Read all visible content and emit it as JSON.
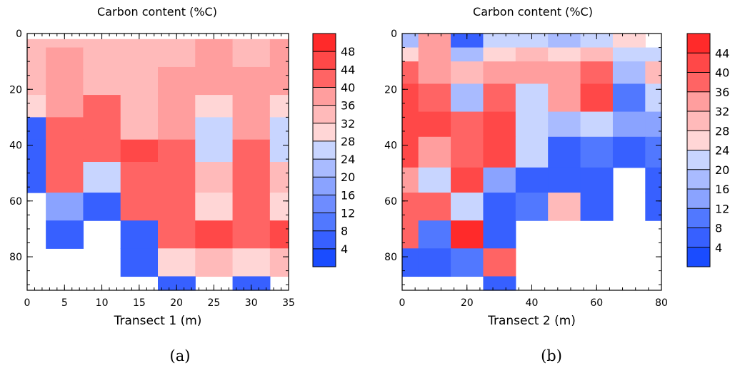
{
  "chart_data": [
    {
      "type": "heatmap",
      "title": "Carbon content (%C)",
      "xlabel": "Transect 1 (m)",
      "ylabel": "",
      "caption": "(a)",
      "xlim": [
        0,
        35
      ],
      "ylim": [
        0,
        92
      ],
      "y_axis": "inverted (0 at top)",
      "x_ticks": [
        "0",
        "5",
        "10",
        "15",
        "20",
        "25",
        "30",
        "35"
      ],
      "y_ticks": [
        "0",
        "20",
        "40",
        "60",
        "80"
      ],
      "x_edges": [
        0,
        2.5,
        7.5,
        12.5,
        17.5,
        22.5,
        27.5,
        32.5,
        35
      ],
      "y_edges": [
        2,
        5,
        12,
        22,
        30,
        38,
        46,
        57,
        67,
        77,
        87,
        92
      ],
      "values": [
        [
          32,
          32,
          32,
          32,
          34,
          38,
          34,
          38
        ],
        [
          32,
          38,
          34,
          34,
          34,
          38,
          34,
          38
        ],
        [
          32,
          38,
          34,
          34,
          38,
          38,
          38,
          38
        ],
        [
          28,
          38,
          42,
          34,
          38,
          28,
          38,
          28
        ],
        [
          6,
          42,
          42,
          34,
          38,
          24,
          38,
          24
        ],
        [
          6,
          42,
          42,
          46,
          42,
          24,
          42,
          24
        ],
        [
          6,
          42,
          24,
          42,
          42,
          34,
          42,
          34
        ],
        [
          null,
          18,
          6,
          42,
          42,
          28,
          42,
          28
        ],
        [
          null,
          6,
          null,
          6,
          42,
          46,
          42,
          46
        ],
        [
          null,
          null,
          null,
          6,
          28,
          34,
          28,
          34
        ],
        [
          null,
          null,
          null,
          null,
          6,
          null,
          6,
          null
        ]
      ],
      "colorbar": {
        "levels": [
          0,
          4,
          8,
          12,
          16,
          20,
          24,
          28,
          32,
          36,
          40,
          44,
          48,
          52
        ],
        "labels": [
          "4",
          "8",
          "12",
          "16",
          "20",
          "24",
          "28",
          "32",
          "36",
          "40",
          "44",
          "48"
        ]
      }
    },
    {
      "type": "heatmap",
      "title": "Carbon content (%C)",
      "xlabel": "Transect 2 (m)",
      "ylabel": "",
      "caption": "(b)",
      "xlim": [
        0,
        80
      ],
      "ylim": [
        0,
        92
      ],
      "y_axis": "inverted (0 at top)",
      "x_ticks": [
        "0",
        "20",
        "40",
        "60",
        "80"
      ],
      "y_ticks": [
        "0",
        "20",
        "40",
        "60",
        "80"
      ],
      "x_edges": [
        0,
        5,
        15,
        25,
        35,
        45,
        55,
        65,
        75,
        80
      ],
      "y_edges": [
        0,
        5,
        10,
        18,
        28,
        37,
        48,
        57,
        67,
        77,
        87,
        92
      ],
      "values": [
        [
          18,
          34,
          6,
          22,
          22,
          18,
          22,
          26,
          null
        ],
        [
          26,
          34,
          18,
          26,
          30,
          26,
          30,
          22,
          22
        ],
        [
          38,
          34,
          30,
          34,
          34,
          34,
          38,
          18,
          30
        ],
        [
          42,
          38,
          18,
          38,
          22,
          34,
          42,
          10,
          22
        ],
        [
          42,
          42,
          38,
          42,
          22,
          18,
          22,
          14,
          14
        ],
        [
          42,
          34,
          38,
          42,
          22,
          6,
          10,
          6,
          10
        ],
        [
          34,
          22,
          42,
          14,
          6,
          6,
          6,
          null,
          6
        ],
        [
          38,
          38,
          22,
          6,
          10,
          30,
          6,
          null,
          6
        ],
        [
          38,
          10,
          46,
          6,
          null,
          null,
          null,
          null,
          null
        ],
        [
          6,
          6,
          10,
          38,
          null,
          null,
          null,
          null,
          null
        ],
        [
          null,
          null,
          null,
          6,
          null,
          null,
          null,
          null,
          null
        ]
      ],
      "colorbar": {
        "levels": [
          0,
          4,
          8,
          12,
          16,
          20,
          24,
          28,
          32,
          36,
          40,
          44,
          48
        ],
        "labels": [
          "4",
          "8",
          "12",
          "16",
          "20",
          "24",
          "28",
          "32",
          "36",
          "40",
          "44"
        ]
      }
    }
  ]
}
